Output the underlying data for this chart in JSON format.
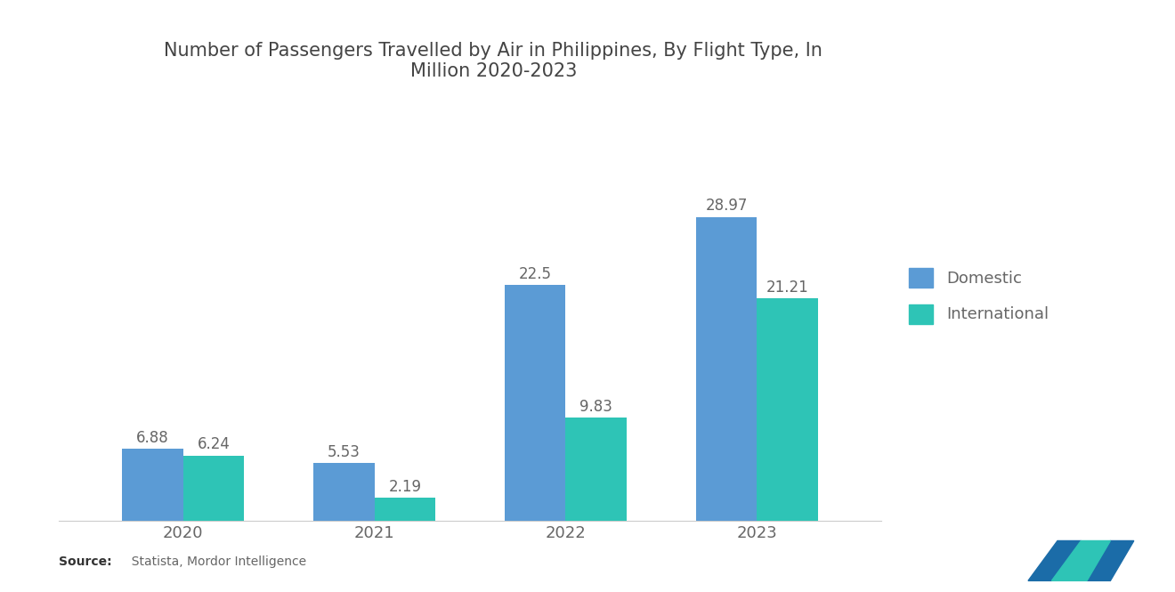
{
  "title": "Number of Passengers Travelled by Air in Philippines, By Flight Type, In\nMillion 2020-2023",
  "years": [
    "2020",
    "2021",
    "2022",
    "2023"
  ],
  "domestic": [
    6.88,
    5.53,
    22.5,
    28.97
  ],
  "international": [
    6.24,
    2.19,
    9.83,
    21.21
  ],
  "domestic_color": "#5B9BD5",
  "international_color": "#2EC4B6",
  "background_color": "#FFFFFF",
  "title_fontsize": 15,
  "legend_labels": [
    "Domestic",
    "International"
  ],
  "source_bold": "Source:",
  "source_rest": "  Statista, Mordor Intelligence",
  "bar_width": 0.32,
  "ylim": [
    0,
    35
  ],
  "label_color": "#666666",
  "label_fontsize": 12
}
